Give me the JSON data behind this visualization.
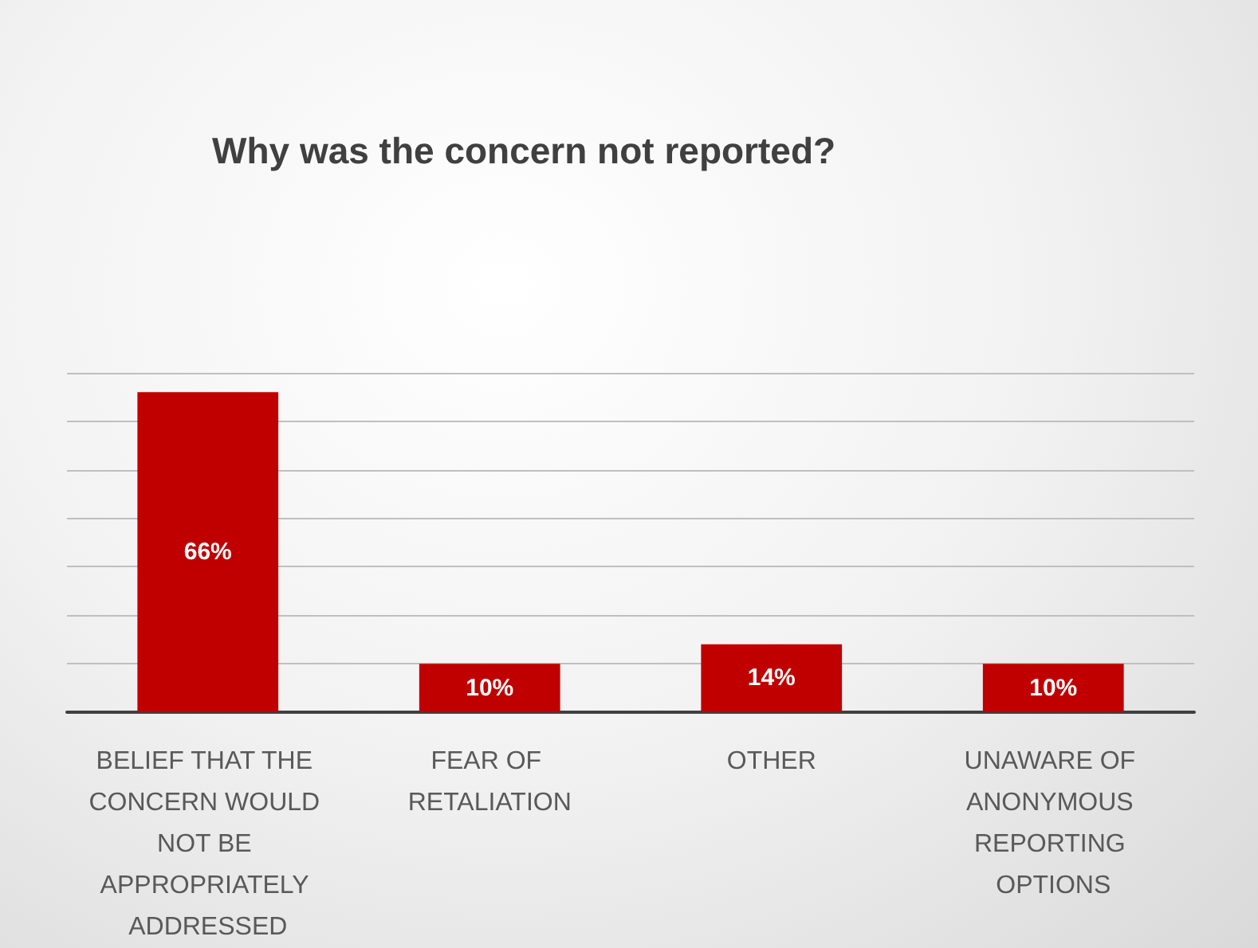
{
  "chart_data": {
    "type": "bar",
    "title": "Why was the concern not reported?",
    "categories": [
      "BELIEF THAT THE CONCERN WOULD NOT BE APPROPRIATELY ADDRESSED",
      "FEAR OF RETALIATION",
      "OTHER",
      "UNAWARE OF ANONYMOUS REPORTING OPTIONS"
    ],
    "values": [
      66,
      10,
      14,
      10
    ],
    "value_labels": [
      "66%",
      "10%",
      "14%",
      "10%"
    ],
    "color": "#c00000",
    "ylim": [
      0,
      70
    ],
    "yticks": [
      {
        "value": 0,
        "label": null
      },
      {
        "value": 10,
        "label": null
      },
      {
        "value": 20,
        "label": null
      },
      {
        "value": 30,
        "label": null
      },
      {
        "value": 40,
        "label": null
      },
      {
        "value": 50,
        "label": null
      },
      {
        "value": 60,
        "label": null
      },
      {
        "value": 70,
        "label": null
      }
    ],
    "grid": true,
    "tick_labels": "x"
  }
}
